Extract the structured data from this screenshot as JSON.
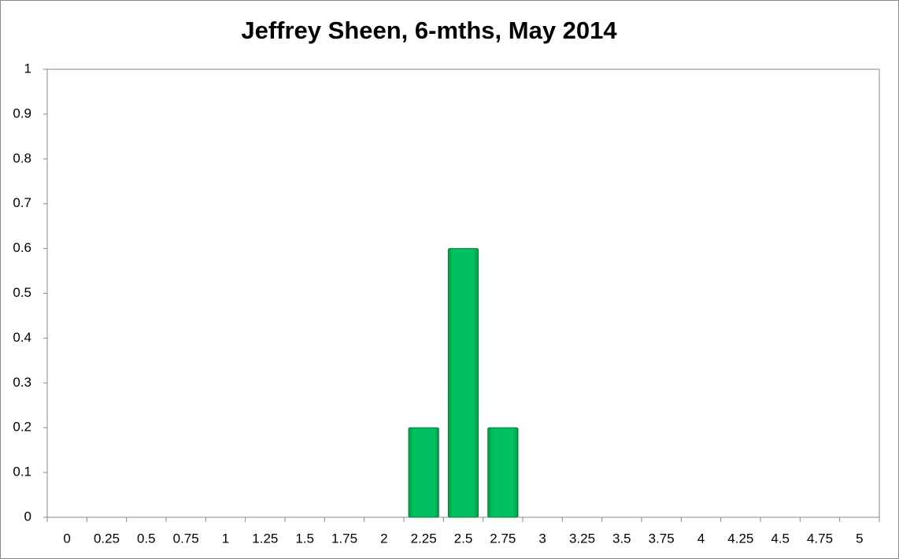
{
  "chart_data": {
    "type": "bar",
    "title": "Jeffrey Sheen, 6-mths, May 2014",
    "categories": [
      "0",
      "0.25",
      "0.5",
      "0.75",
      "1",
      "1.25",
      "1.5",
      "1.75",
      "2",
      "2.25",
      "2.5",
      "2.75",
      "3",
      "3.25",
      "3.5",
      "3.75",
      "4",
      "4.25",
      "4.5",
      "4.75",
      "5"
    ],
    "values": [
      0,
      0,
      0,
      0,
      0,
      0,
      0,
      0,
      0,
      0.2,
      0.6,
      0.2,
      0,
      0,
      0,
      0,
      0,
      0,
      0,
      0,
      0
    ],
    "color": "#00b050",
    "ylim": [
      0,
      1
    ],
    "yticks": [
      0,
      0.1,
      0.2,
      0.3,
      0.4,
      0.5,
      0.6,
      0.7,
      0.8,
      0.9,
      1
    ],
    "grid": false
  }
}
